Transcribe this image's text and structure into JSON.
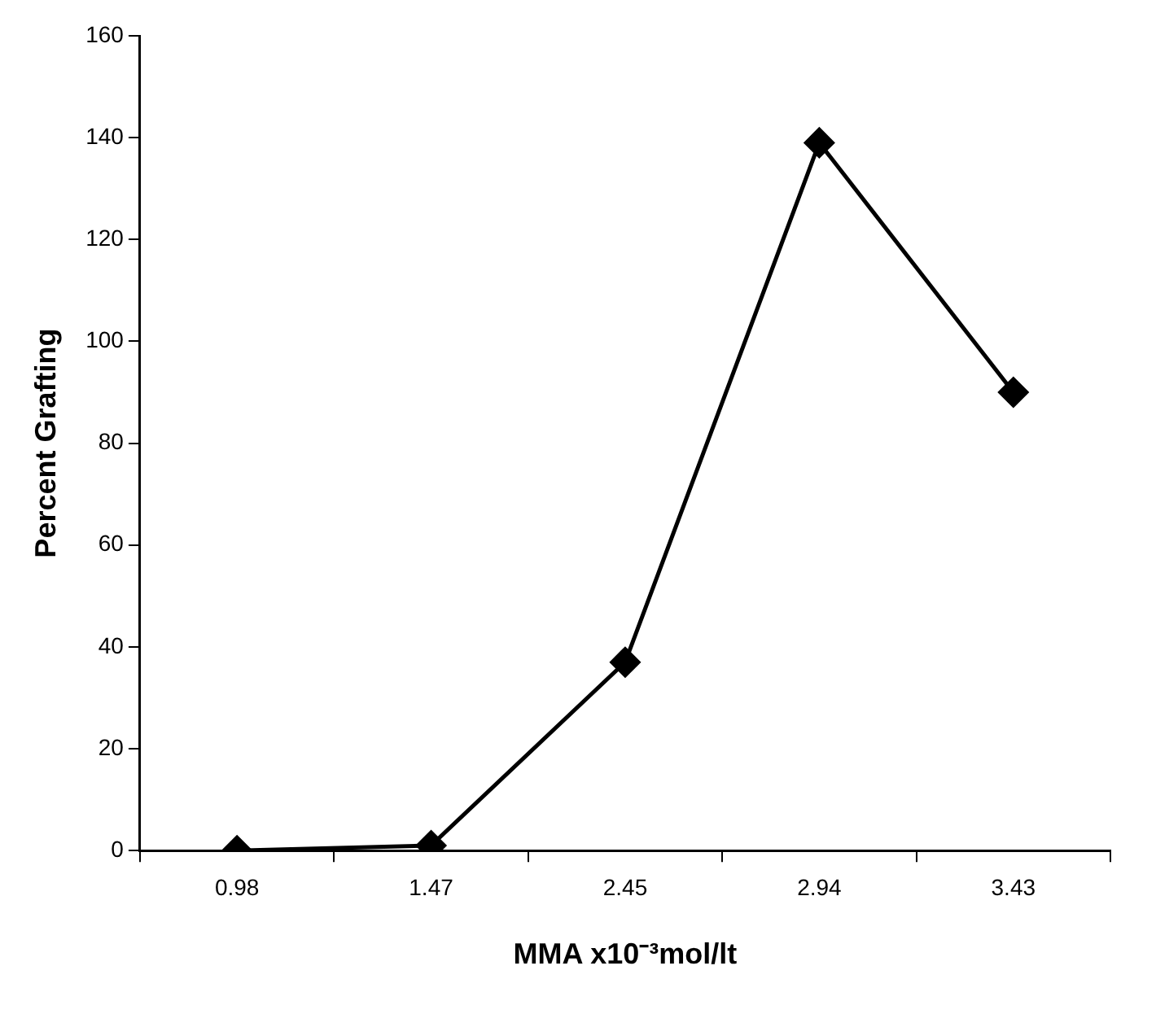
{
  "chart_data": {
    "type": "line",
    "xlabel": "MMA x10⁻³mol/lt",
    "ylabel": "Percent Grafting",
    "categories": [
      "0.98",
      "1.47",
      "2.45",
      "2.94",
      "3.43"
    ],
    "series": [
      {
        "color": "#000000",
        "values": [
          0,
          1,
          37,
          139,
          90
        ]
      }
    ],
    "ylim": [
      0,
      160
    ],
    "yticks": [
      0,
      20,
      40,
      60,
      80,
      100,
      120,
      140,
      160
    ],
    "grid": false,
    "legend": false,
    "marker": "diamond",
    "line_style": "solid"
  }
}
